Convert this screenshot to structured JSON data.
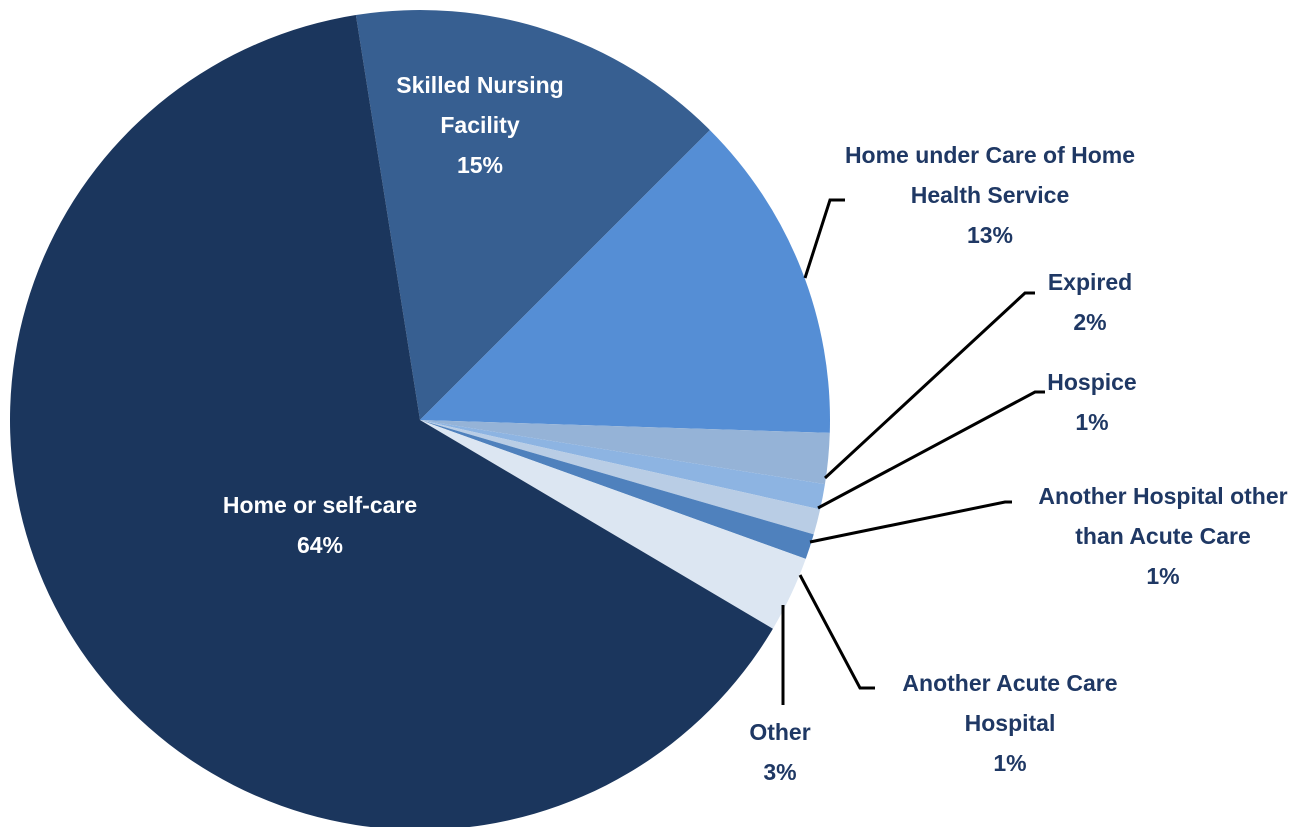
{
  "chart_data": {
    "type": "pie",
    "categories": [
      "Skilled Nursing Facility",
      "Home under Care of Home Health Service",
      "Expired",
      "Hospice",
      "Another Hospital other than Acute Care",
      "Another Acute Care Hospital",
      "Other",
      "Home or self-care"
    ],
    "values": [
      15,
      13,
      2,
      1,
      1,
      1,
      3,
      64
    ],
    "value_labels": [
      "15%",
      "13%",
      "2%",
      "1%",
      "1%",
      "1%",
      "3%",
      "64%"
    ],
    "colors": [
      "#375f91",
      "#558ed5",
      "#95b3d7",
      "#8db4e2",
      "#b9cde5",
      "#4f81bd",
      "#dce6f2",
      "#1b365d"
    ]
  }
}
